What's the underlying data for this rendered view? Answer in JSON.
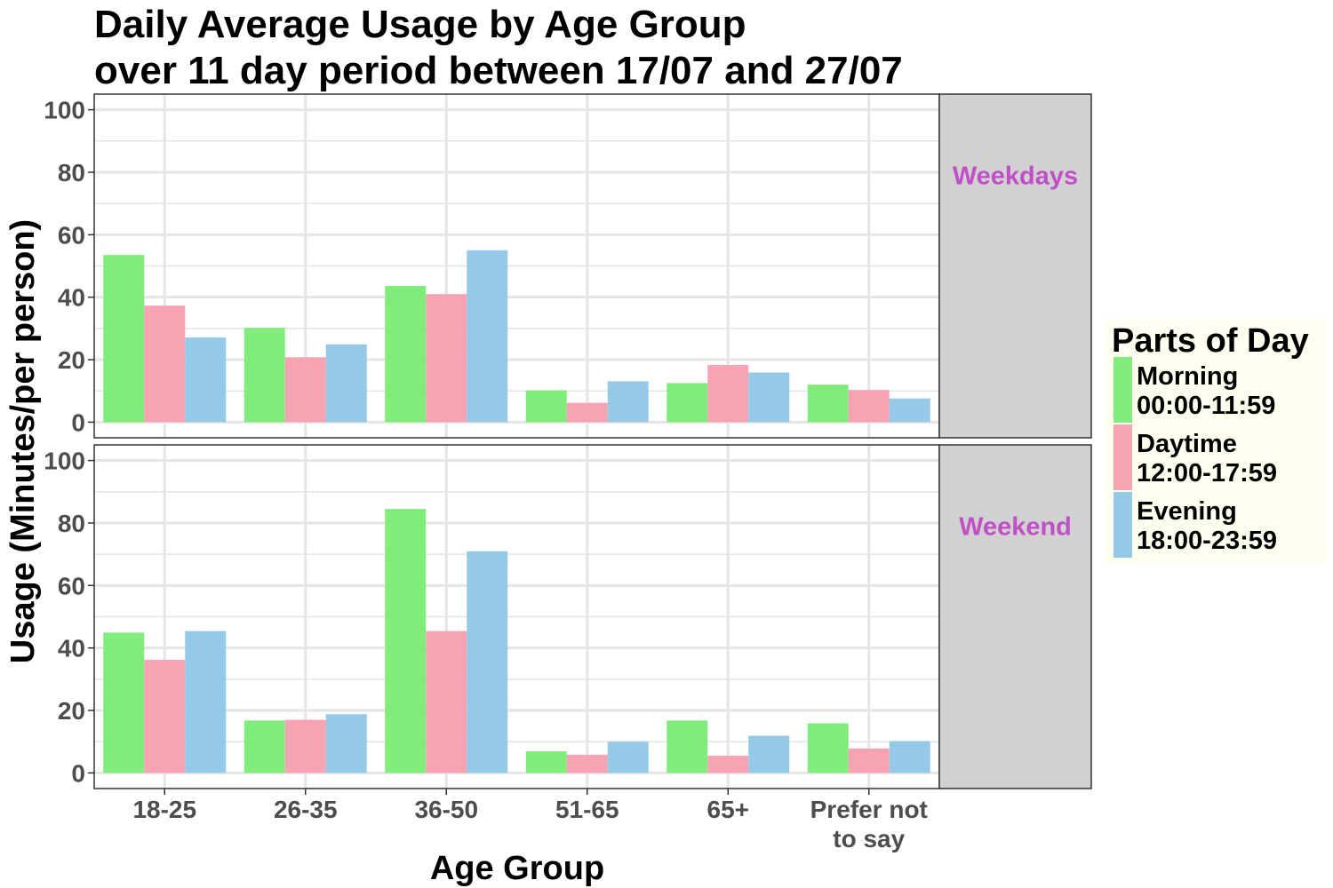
{
  "chart_data": {
    "type": "bar",
    "title_lines": [
      "Daily Average Usage by Age Group",
      "over 11 day period between 17/07 and 27/07"
    ],
    "xlabel": "Age Group",
    "ylabel": "Usage (Minutes/per person)",
    "ylim": [
      0,
      100
    ],
    "yticks": [
      0,
      20,
      40,
      60,
      80,
      100
    ],
    "categories": [
      [
        "18-25"
      ],
      [
        "26-35"
      ],
      [
        "36-50"
      ],
      [
        "51-65"
      ],
      [
        "65+"
      ],
      [
        "Prefer not",
        "to say"
      ]
    ],
    "legend": {
      "title": "Parts of Day",
      "position": "right",
      "items": [
        {
          "lines": [
            "Morning",
            "00:00-11:59"
          ],
          "color": "#80ec7c"
        },
        {
          "lines": [
            "Daytime",
            "12:00-17:59"
          ],
          "color": "#f8a3b4"
        },
        {
          "lines": [
            "Evening",
            "18:00-23:59"
          ],
          "color": "#95c9e8"
        }
      ]
    },
    "panels": [
      {
        "label": "Weekdays",
        "series": [
          {
            "name": "Morning 00:00-11:59",
            "values": [
              53.5,
              30.2,
              43.6,
              10.2,
              12.5,
              12.0
            ]
          },
          {
            "name": "Daytime 12:00-17:59",
            "values": [
              37.3,
              20.8,
              41.0,
              6.2,
              18.3,
              10.3
            ]
          },
          {
            "name": "Evening 18:00-23:59",
            "values": [
              27.1,
              24.9,
              55.0,
              13.1,
              15.9,
              7.6
            ]
          }
        ]
      },
      {
        "label": "Weekend",
        "series": [
          {
            "name": "Morning 00:00-11:59",
            "values": [
              44.9,
              16.8,
              84.5,
              6.9,
              16.8,
              15.9
            ]
          },
          {
            "name": "Daytime 12:00-17:59",
            "values": [
              36.2,
              17.0,
              45.4,
              5.8,
              5.5,
              7.8
            ]
          },
          {
            "name": "Evening 18:00-23:59",
            "values": [
              45.4,
              18.8,
              70.9,
              10.0,
              11.9,
              10.2
            ]
          }
        ]
      }
    ],
    "grid": true,
    "colors": {
      "strip_background": "#d1d1d1",
      "strip_text": "#c150c8",
      "grid": "#e5e5e5",
      "legend_background": "#fffff0"
    }
  }
}
